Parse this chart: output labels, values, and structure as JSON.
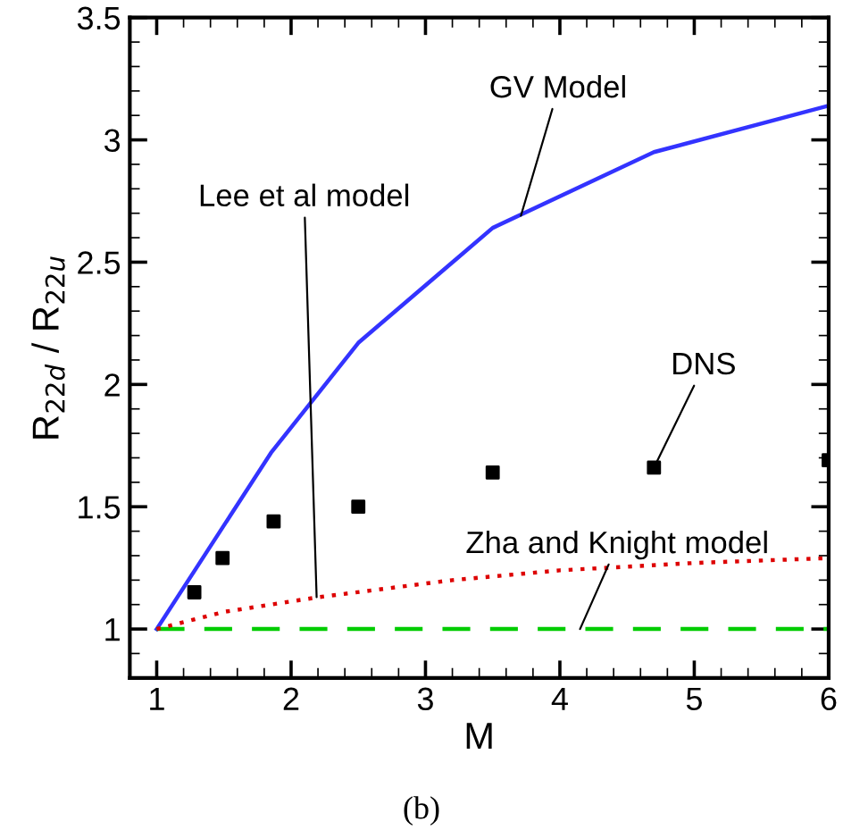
{
  "chart_data": {
    "type": "line",
    "xlabel": "M",
    "ylabel": "R$_{22d}$ / R$_{22u}$",
    "series": [
      {
        "color": "#3333ff",
        "line_style": "solid",
        "marker": "none",
        "x": [
          1,
          1.85,
          2.5,
          3.5,
          4.7,
          6
        ],
        "values": [
          1,
          1.72,
          2.17,
          2.64,
          2.95,
          3.14
        ]
      },
      {
        "color": "#dd0000",
        "line_style": "dotted",
        "marker": "none",
        "x": [
          1,
          1.5,
          2.2,
          3.2,
          4,
          5,
          6
        ],
        "values": [
          1,
          1.07,
          1.13,
          1.2,
          1.24,
          1.27,
          1.29
        ]
      },
      {
        "color": "#00cc00",
        "line_style": "dashed",
        "marker": "none",
        "x": [
          1,
          6
        ],
        "values": [
          1,
          1
        ]
      },
      {
        "type": "scatter",
        "color": "#000000",
        "marker": "square",
        "x": [
          1.28,
          1.49,
          1.87,
          2.5,
          3.5,
          4.7,
          6
        ],
        "values": [
          1.15,
          1.29,
          1.44,
          1.5,
          1.64,
          1.66,
          1.69
        ]
      }
    ],
    "annotations": [
      {
        "text": "GV Model",
        "x": 3.71,
        "y": 2.69
      },
      {
        "text": "Lee et al model",
        "x": 2.19,
        "y": 1.13
      },
      {
        "text": "DNS",
        "x": 4.7,
        "y": 1.66
      },
      {
        "text": "Zha and Knight model",
        "x": 4.15,
        "y": 1
      },
      "(b)"
    ],
    "xlim": [
      0.8,
      6
    ],
    "ylim": [
      0.8,
      3.5
    ],
    "xticks": [
      1,
      2,
      3,
      4,
      5,
      6
    ],
    "yticks": [
      1,
      1.5,
      2,
      2.5,
      3,
      3.5
    ],
    "grid": false,
    "legend": false
  }
}
